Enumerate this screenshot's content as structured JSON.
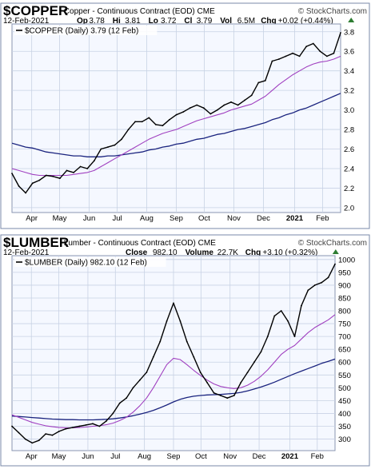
{
  "colors": {
    "plot_bg": "#f5f8ff",
    "grid": "#c8d2e4",
    "price": "#000000",
    "ma_short": "#a040c0",
    "ma_long": "#1a237e",
    "up": "#2e7d32",
    "frame": "#7a8aa8"
  },
  "brand": "© StockCharts.com",
  "chart_data": [
    {
      "type": "line",
      "symbol": "$COPPER",
      "name": "Copper - Continuous Contract (EOD)",
      "exchange": "CME",
      "date": "12-Feb-2021",
      "quote_labels": [
        "Op",
        "Hi",
        "Lo",
        "Cl",
        "Vol",
        "Chg"
      ],
      "quote_values": [
        "3.78",
        "3.81",
        "3.72",
        "3.79",
        "6.5M",
        "+0.02 (+0.44%)"
      ],
      "legend": "$COPPER (Daily) 3.79 (12 Feb)",
      "x_labels": [
        "Apr",
        "May",
        "Jun",
        "Jul",
        "Aug",
        "Sep",
        "Oct",
        "Nov",
        "Dec",
        "2021",
        "Feb"
      ],
      "ylim": [
        1.95,
        3.88
      ],
      "yticks": [
        "2.0",
        "2.2",
        "2.4",
        "2.6",
        "2.8",
        "3.0",
        "3.2",
        "3.4",
        "3.6",
        "3.8"
      ],
      "x": [
        "2020-03-15",
        "2020-03-20",
        "2020-03-27",
        "2020-04-03",
        "2020-04-10",
        "2020-04-17",
        "2020-04-24",
        "2020-05-01",
        "2020-05-08",
        "2020-05-15",
        "2020-05-22",
        "2020-05-29",
        "2020-06-05",
        "2020-06-12",
        "2020-06-19",
        "2020-06-26",
        "2020-07-03",
        "2020-07-10",
        "2020-07-17",
        "2020-07-24",
        "2020-07-31",
        "2020-08-07",
        "2020-08-14",
        "2020-08-21",
        "2020-08-28",
        "2020-09-04",
        "2020-09-11",
        "2020-09-18",
        "2020-09-25",
        "2020-10-02",
        "2020-10-09",
        "2020-10-16",
        "2020-10-23",
        "2020-10-30",
        "2020-11-06",
        "2020-11-13",
        "2020-11-20",
        "2020-11-27",
        "2020-12-04",
        "2020-12-11",
        "2020-12-18",
        "2020-12-25",
        "2021-01-01",
        "2021-01-08",
        "2021-01-15",
        "2021-01-22",
        "2021-01-29",
        "2021-02-05",
        "2021-02-12"
      ],
      "series": [
        {
          "values": [
            2.35,
            2.22,
            2.15,
            2.25,
            2.28,
            2.33,
            2.32,
            2.3,
            2.38,
            2.36,
            2.42,
            2.4,
            2.48,
            2.6,
            2.62,
            2.64,
            2.7,
            2.8,
            2.88,
            2.88,
            2.92,
            2.85,
            2.84,
            2.9,
            2.95,
            2.98,
            3.02,
            3.05,
            3.02,
            2.96,
            3.0,
            3.05,
            3.08,
            3.05,
            3.1,
            3.15,
            3.28,
            3.3,
            3.5,
            3.52,
            3.55,
            3.58,
            3.55,
            3.65,
            3.68,
            3.6,
            3.55,
            3.58,
            3.79
          ]
        },
        {
          "values": [
            2.4,
            2.38,
            2.36,
            2.34,
            2.33,
            2.33,
            2.33,
            2.33,
            2.33,
            2.34,
            2.35,
            2.36,
            2.38,
            2.42,
            2.46,
            2.5,
            2.54,
            2.58,
            2.62,
            2.66,
            2.7,
            2.73,
            2.76,
            2.78,
            2.8,
            2.83,
            2.86,
            2.89,
            2.91,
            2.93,
            2.95,
            2.97,
            3.0,
            3.02,
            3.04,
            3.06,
            3.1,
            3.14,
            3.2,
            3.26,
            3.31,
            3.36,
            3.4,
            3.44,
            3.47,
            3.49,
            3.5,
            3.52,
            3.55
          ]
        },
        {
          "values": [
            2.66,
            2.64,
            2.62,
            2.61,
            2.59,
            2.57,
            2.56,
            2.55,
            2.54,
            2.53,
            2.53,
            2.52,
            2.52,
            2.52,
            2.53,
            2.53,
            2.54,
            2.55,
            2.56,
            2.57,
            2.59,
            2.6,
            2.62,
            2.63,
            2.65,
            2.66,
            2.68,
            2.7,
            2.71,
            2.73,
            2.75,
            2.76,
            2.78,
            2.8,
            2.81,
            2.83,
            2.85,
            2.87,
            2.9,
            2.92,
            2.95,
            2.97,
            3.0,
            3.02,
            3.05,
            3.08,
            3.11,
            3.14,
            3.17
          ]
        }
      ]
    },
    {
      "type": "line",
      "symbol": "$LUMBER",
      "name": "Lumber - Continuous Contract (EOD)",
      "exchange": "CME",
      "date": "12-Feb-2021",
      "quote_labels": [
        "Close",
        "Volume",
        "Chg"
      ],
      "quote_values": [
        "982.10",
        "22.7K",
        "+3.10 (+0.32%)"
      ],
      "legend": "$LUMBER (Daily) 982.10 (12 Feb)",
      "x_labels": [
        "Apr",
        "May",
        "Jun",
        "Jul",
        "Aug",
        "Sep",
        "Oct",
        "Nov",
        "Dec",
        "2021",
        "Feb"
      ],
      "ylim": [
        255,
        1015
      ],
      "yticks": [
        "300",
        "350",
        "400",
        "450",
        "500",
        "550",
        "600",
        "650",
        "700",
        "750",
        "800",
        "850",
        "900",
        "950",
        "1000"
      ],
      "x": [
        "2020-03-15",
        "2020-03-20",
        "2020-03-27",
        "2020-04-03",
        "2020-04-10",
        "2020-04-17",
        "2020-04-24",
        "2020-05-01",
        "2020-05-08",
        "2020-05-15",
        "2020-05-22",
        "2020-05-29",
        "2020-06-05",
        "2020-06-12",
        "2020-06-19",
        "2020-06-26",
        "2020-07-03",
        "2020-07-10",
        "2020-07-17",
        "2020-07-24",
        "2020-07-31",
        "2020-08-07",
        "2020-08-14",
        "2020-08-21",
        "2020-08-28",
        "2020-09-04",
        "2020-09-11",
        "2020-09-18",
        "2020-09-25",
        "2020-10-02",
        "2020-10-09",
        "2020-10-16",
        "2020-10-23",
        "2020-10-30",
        "2020-11-06",
        "2020-11-13",
        "2020-11-20",
        "2020-11-27",
        "2020-12-04",
        "2020-12-11",
        "2020-12-18",
        "2020-12-25",
        "2021-01-01",
        "2021-01-08",
        "2021-01-15",
        "2021-01-22",
        "2021-01-29",
        "2021-02-05",
        "2021-02-12"
      ],
      "series": [
        {
          "values": [
            350,
            325,
            300,
            285,
            295,
            320,
            315,
            330,
            340,
            345,
            350,
            355,
            360,
            350,
            370,
            400,
            440,
            460,
            500,
            530,
            560,
            620,
            680,
            760,
            830,
            760,
            680,
            620,
            560,
            520,
            480,
            470,
            460,
            470,
            520,
            560,
            600,
            640,
            700,
            780,
            800,
            760,
            700,
            820,
            880,
            900,
            910,
            930,
            982
          ]
        },
        {
          "values": [
            395,
            385,
            375,
            365,
            358,
            352,
            348,
            345,
            344,
            344,
            345,
            347,
            350,
            352,
            356,
            362,
            372,
            385,
            405,
            430,
            460,
            500,
            545,
            590,
            615,
            610,
            590,
            568,
            548,
            530,
            515,
            505,
            500,
            497,
            500,
            510,
            525,
            545,
            570,
            600,
            630,
            650,
            665,
            690,
            715,
            735,
            750,
            765,
            785
          ]
        },
        {
          "values": [
            390,
            388,
            386,
            384,
            382,
            380,
            378,
            377,
            376,
            376,
            375,
            375,
            375,
            376,
            377,
            379,
            382,
            386,
            391,
            397,
            404,
            412,
            422,
            433,
            445,
            455,
            462,
            467,
            470,
            472,
            473,
            474,
            476,
            478,
            482,
            488,
            495,
            503,
            512,
            522,
            533,
            544,
            555,
            565,
            575,
            585,
            595,
            603,
            612
          ]
        }
      ]
    }
  ]
}
